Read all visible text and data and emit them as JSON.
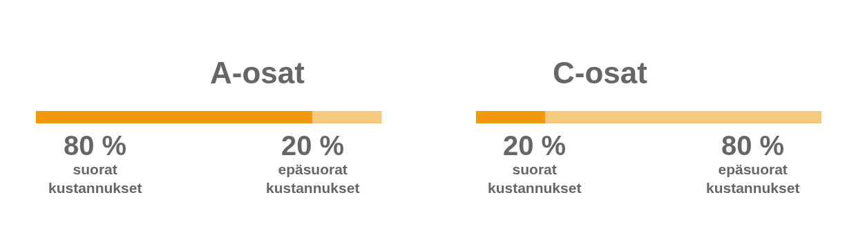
{
  "chart_data": [
    {
      "type": "bar",
      "orientation": "horizontal",
      "stacked": true,
      "title": "A-osat",
      "categories": [
        null
      ],
      "legend": false,
      "tick_labels": false,
      "series": [
        {
          "name": "suorat kustannukset",
          "color": "#f0990c",
          "values": [
            80
          ],
          "value_labels": [
            "80 %"
          ]
        },
        {
          "name": "epäsuorat kustannukset",
          "color": "#f7c97f",
          "values": [
            20
          ],
          "value_labels": [
            "20 %"
          ]
        }
      ]
    },
    {
      "type": "bar",
      "orientation": "horizontal",
      "stacked": true,
      "title": "C-osat",
      "categories": [
        null
      ],
      "legend": false,
      "tick_labels": false,
      "series": [
        {
          "name": "suorat kustannukset",
          "color": "#f0990c",
          "values": [
            20
          ],
          "value_labels": [
            "20 %"
          ]
        },
        {
          "name": "epäsuorat kustannukset",
          "color": "#f7c97f",
          "values": [
            80
          ],
          "value_labels": [
            "80 %"
          ]
        }
      ]
    }
  ]
}
